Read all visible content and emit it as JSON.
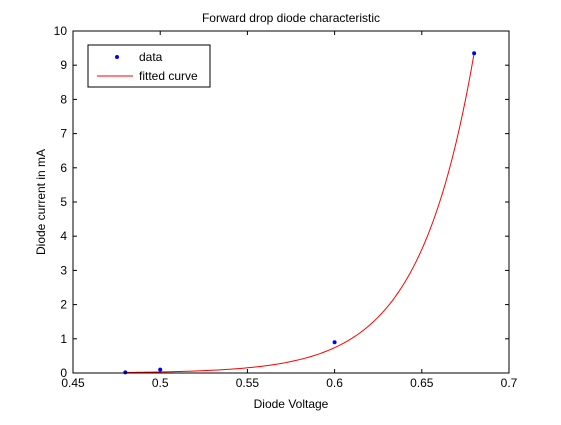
{
  "chart_data": {
    "type": "scatter",
    "title": "Forward drop diode characteristic",
    "xlabel": "Diode Voltage",
    "ylabel": "Diode current in mA",
    "xlim": [
      0.45,
      0.7
    ],
    "ylim": [
      0,
      10
    ],
    "xticks": [
      "0.45",
      "0.5",
      "0.55",
      "0.6",
      "0.65",
      "0.7"
    ],
    "yticks": [
      "0",
      "1",
      "2",
      "3",
      "4",
      "5",
      "6",
      "7",
      "8",
      "9",
      "10"
    ],
    "grid": false,
    "legend_position": "top-left",
    "series": [
      {
        "name": "data",
        "kind": "markers",
        "color": "#0000ff",
        "x": [
          0.48,
          0.5,
          0.6,
          0.68
        ],
        "y": [
          0.02,
          0.1,
          0.9,
          9.35
        ]
      },
      {
        "name": "fitted curve",
        "kind": "line",
        "color": "#ff0000",
        "x_range": [
          0.48,
          0.68
        ],
        "model": "exponential",
        "y_at_start": 0.0165,
        "y_at_end": 9.35
      }
    ]
  }
}
